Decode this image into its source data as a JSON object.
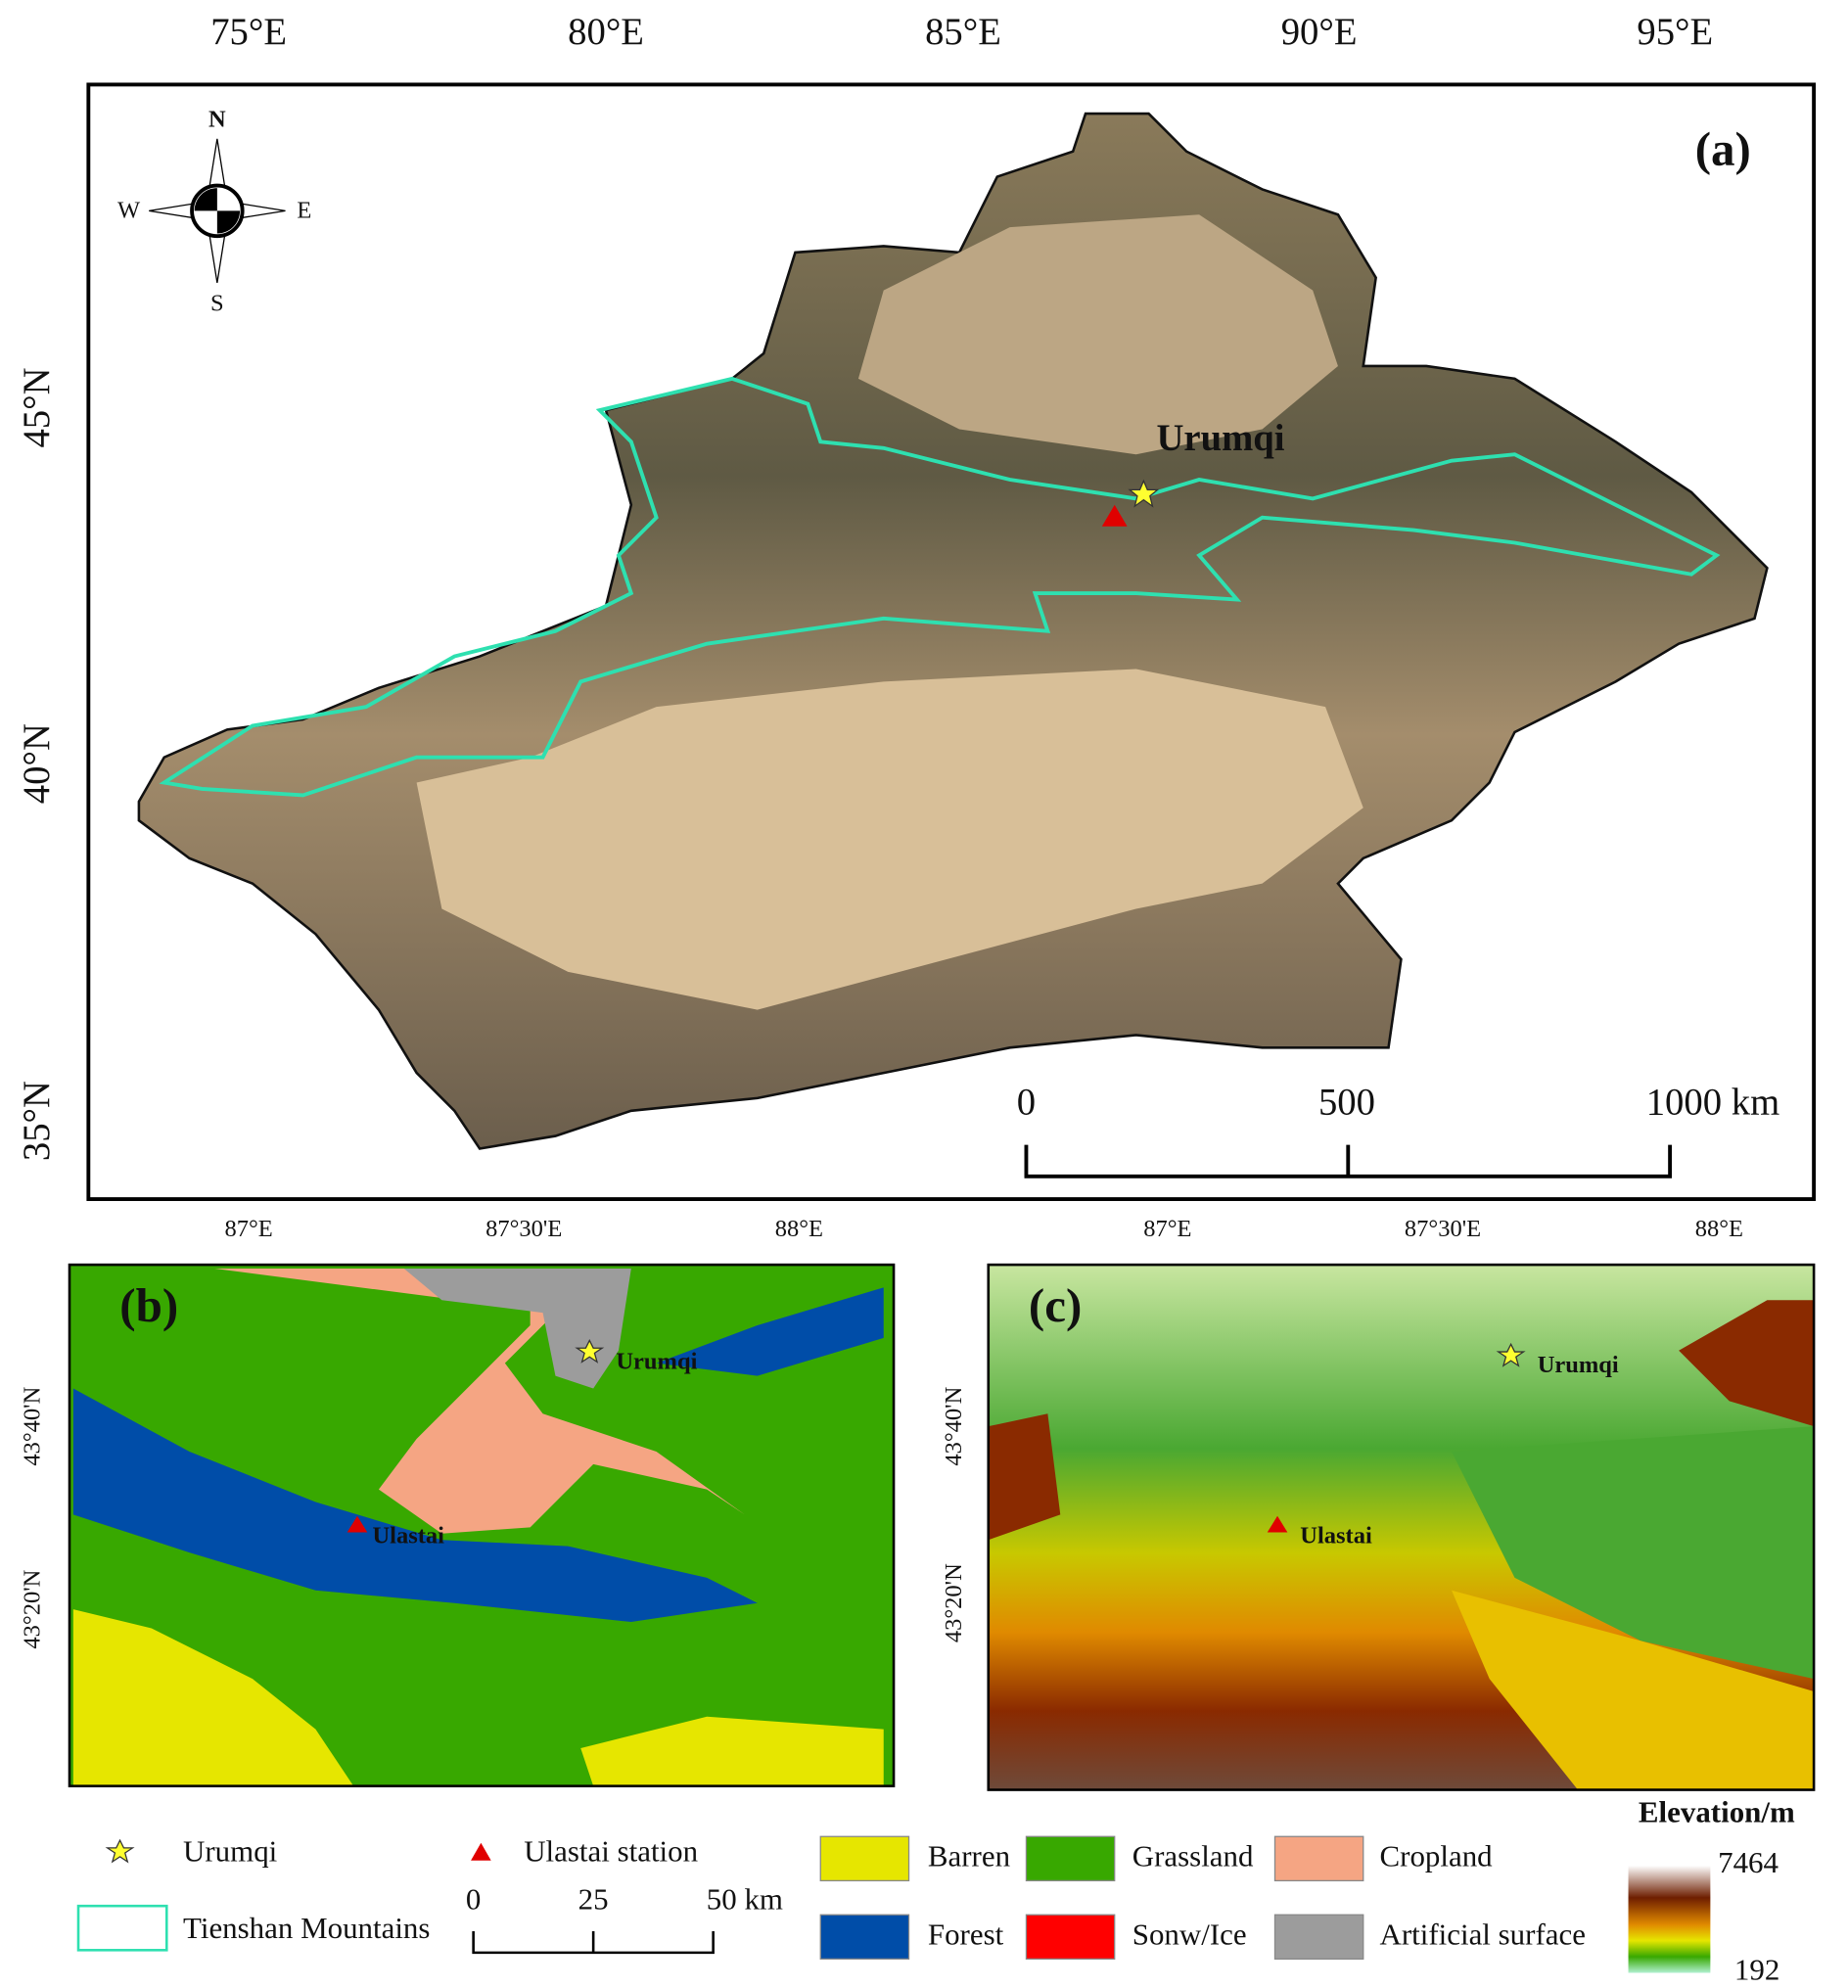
{
  "panels": [
    {
      "label": "(a)",
      "lon_ticks": [
        "75°E",
        "80°E",
        "85°E",
        "90°E",
        "95°E"
      ],
      "lat_ticks": [
        "45°N",
        "40°N",
        "35°N"
      ],
      "compass": [
        "N",
        "W",
        "E",
        "S"
      ],
      "place": "Urumqi",
      "scale_bar": [
        "0",
        "500",
        "1000 km"
      ]
    },
    {
      "label": "(b)",
      "lon_ticks": [
        "87°E",
        "87°30'E",
        "88°E"
      ],
      "lat_ticks": [
        "43°40'N",
        "43°20'N"
      ],
      "places": [
        "Urumqi",
        "Ulastai"
      ]
    },
    {
      "label": "(c)",
      "lon_ticks": [
        "87°E",
        "87°30'E",
        "88°E"
      ],
      "lat_ticks": [
        "43°40'N",
        "43°20'N"
      ],
      "places": [
        "Urumqi",
        "Ulastai"
      ]
    }
  ],
  "legend": {
    "symbols": [
      "Urumqi",
      "Ulastai station",
      "Tienshan Mountains"
    ],
    "scale_bar": [
      "0",
      "25",
      "50 km"
    ],
    "land_cover": [
      {
        "name": "Barren",
        "color": "#e6e600"
      },
      {
        "name": "Grassland",
        "color": "#38a800"
      },
      {
        "name": "Cropland",
        "color": "#f5a583"
      },
      {
        "name": "Forest",
        "color": "#004da8"
      },
      {
        "name": "Sonw/Ice",
        "color": "#ff0000"
      },
      {
        "name": "Artificial surface",
        "color": "#9c9c9c"
      }
    ],
    "elevation": {
      "title": "Elevation/m",
      "max": "7464",
      "min": "192"
    }
  }
}
